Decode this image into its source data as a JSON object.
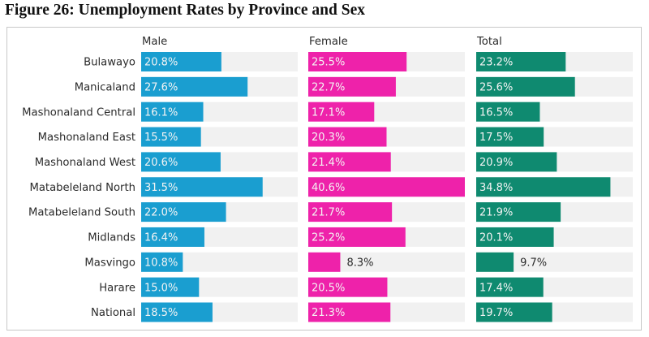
{
  "chart_data": {
    "type": "bar",
    "orientation": "horizontal",
    "layout": "small-multiples",
    "title": "Figure 26: Unemployment Rates by Province and Sex",
    "xlabel": "",
    "ylabel": "",
    "unit": "%",
    "xlim": [
      0,
      40.6
    ],
    "grid": false,
    "legend": "none",
    "categories": [
      "Bulawayo",
      "Manicaland",
      "Mashonaland Central",
      "Mashonaland East",
      "Mashonaland West",
      "Matabeleland North",
      "Matabeleland South",
      "Midlands",
      "Masvingo",
      "Harare",
      "National"
    ],
    "series": [
      {
        "name": "Male",
        "color": "#1a9ed0",
        "values": [
          20.8,
          27.6,
          16.1,
          15.5,
          20.6,
          31.5,
          22.0,
          16.4,
          10.8,
          15.0,
          18.5
        ]
      },
      {
        "name": "Female",
        "color": "#ee22aa",
        "values": [
          25.5,
          22.7,
          17.1,
          20.3,
          21.4,
          40.6,
          21.7,
          25.2,
          8.3,
          20.5,
          21.3
        ]
      },
      {
        "name": "Total",
        "color": "#0f8a70",
        "values": [
          23.2,
          25.6,
          16.5,
          17.5,
          20.9,
          34.8,
          21.9,
          20.1,
          9.7,
          17.4,
          19.7
        ]
      }
    ],
    "track_color": "#f1f1f1"
  }
}
